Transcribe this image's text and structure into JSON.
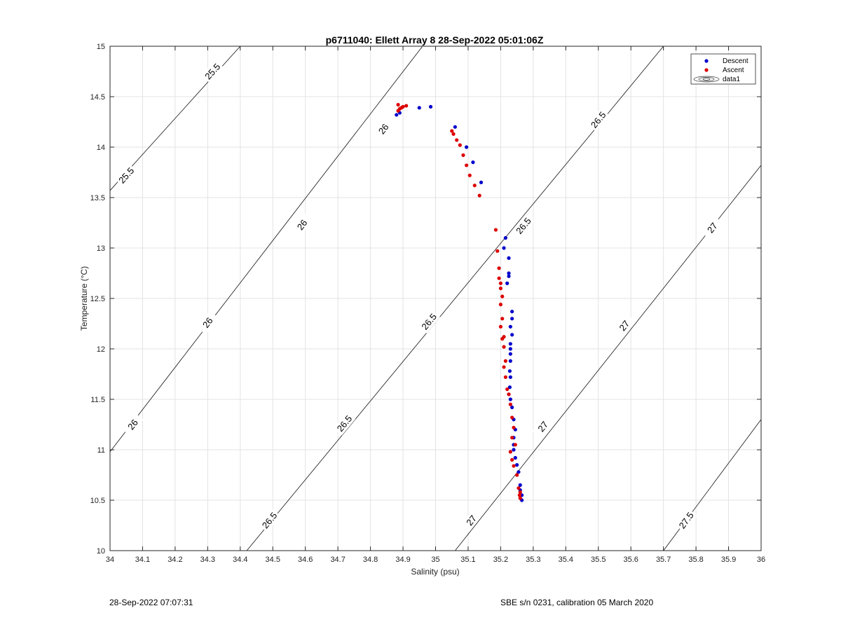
{
  "chart_data": {
    "type": "scatter",
    "title": "p6711040: Ellett Array 8 28-Sep-2022 05:01:06Z",
    "xlabel": "Salinity (psu)",
    "ylabel": "Temperature (°C)",
    "xlim": [
      34,
      36
    ],
    "ylim": [
      10,
      15
    ],
    "xticks": [
      "34",
      "34.1",
      "34.2",
      "34.3",
      "34.4",
      "34.5",
      "34.6",
      "34.7",
      "34.8",
      "34.9",
      "35",
      "35.1",
      "35.2",
      "35.3",
      "35.4",
      "35.5",
      "35.6",
      "35.7",
      "35.8",
      "35.9",
      "36"
    ],
    "yticks": [
      "10",
      "10.5",
      "11",
      "11.5",
      "12",
      "12.5",
      "13",
      "13.5",
      "14",
      "14.5",
      "15"
    ],
    "grid": true,
    "legend_position": "top-right",
    "legend": [
      "Descent",
      "Ascent",
      "data1"
    ],
    "series": [
      {
        "name": "Descent",
        "color": "#0000cc",
        "x": [
          34.88,
          34.89,
          34.95,
          34.985,
          35.06,
          35.095,
          35.115,
          35.14,
          35.21,
          35.215,
          35.22,
          35.225,
          35.225,
          35.225,
          35.235,
          35.235,
          35.23,
          35.235,
          35.23,
          35.23,
          35.23,
          35.23,
          35.228,
          35.23,
          35.228,
          35.225,
          35.23,
          35.235,
          35.24,
          35.245,
          35.24,
          35.24,
          35.24,
          35.245,
          35.25,
          35.255,
          35.26,
          35.26,
          35.265,
          35.265
        ],
        "y": [
          14.32,
          14.34,
          14.39,
          14.4,
          14.2,
          14.0,
          13.85,
          13.65,
          13.0,
          13.1,
          12.65,
          12.72,
          12.75,
          12.9,
          12.37,
          12.3,
          12.22,
          12.14,
          12.05,
          12.0,
          11.95,
          11.88,
          11.78,
          11.72,
          11.62,
          11.55,
          11.5,
          11.42,
          11.3,
          11.2,
          11.12,
          11.05,
          11.0,
          10.92,
          10.85,
          10.78,
          10.65,
          10.6,
          10.55,
          10.5
        ]
      },
      {
        "name": "Ascent",
        "color": "#dd0000",
        "x": [
          34.885,
          34.885,
          34.89,
          34.895,
          34.9,
          34.91,
          35.05,
          35.055,
          35.065,
          35.075,
          35.085,
          35.095,
          35.105,
          35.12,
          35.135,
          35.185,
          35.19,
          35.195,
          35.195,
          35.2,
          35.205,
          35.2,
          35.2,
          35.205,
          35.2,
          35.205,
          35.21,
          35.21,
          35.215,
          35.21,
          35.215,
          35.22,
          35.225,
          35.23,
          35.235,
          35.24,
          35.235,
          35.245,
          35.23,
          35.235,
          35.24,
          35.25,
          35.255,
          35.26,
          35.26,
          35.258
        ],
        "y": [
          14.42,
          14.36,
          14.38,
          14.39,
          14.4,
          14.41,
          14.16,
          14.13,
          14.07,
          14.02,
          13.92,
          13.82,
          13.72,
          13.62,
          13.52,
          13.18,
          12.97,
          12.8,
          12.7,
          12.65,
          12.52,
          12.6,
          12.44,
          12.3,
          12.22,
          12.1,
          12.12,
          12.02,
          11.88,
          11.82,
          11.72,
          11.6,
          11.55,
          11.45,
          11.32,
          11.22,
          11.12,
          11.05,
          10.98,
          10.9,
          10.84,
          10.75,
          10.62,
          10.58,
          10.52,
          10.55
        ]
      }
    ],
    "contours": [
      {
        "label": "25.5",
        "line": [
          [
            34.0,
            13.57
          ],
          [
            34.4,
            15.0
          ]
        ],
        "labels_at": [
          [
            34.05,
            13.72
          ],
          [
            34.315,
            14.75
          ]
        ]
      },
      {
        "label": "26",
        "line": [
          [
            34.0,
            10.98
          ],
          [
            34.96,
            15.0
          ]
        ],
        "labels_at": [
          [
            34.07,
            11.25
          ],
          [
            34.3,
            12.26
          ],
          [
            34.59,
            13.23
          ],
          [
            34.84,
            14.18
          ]
        ]
      },
      {
        "label": "26.5",
        "line": [
          [
            34.42,
            10.0
          ],
          [
            35.7,
            15.0
          ]
        ],
        "labels_at": [
          [
            34.49,
            10.3
          ],
          [
            34.72,
            11.26
          ],
          [
            34.98,
            12.27
          ],
          [
            35.27,
            13.22
          ],
          [
            35.5,
            14.27
          ]
        ]
      },
      {
        "label": "27",
        "line": [
          [
            35.06,
            10.0
          ],
          [
            36.0,
            13.82
          ]
        ],
        "labels_at": [
          [
            35.11,
            10.3
          ],
          [
            35.33,
            11.23
          ],
          [
            35.58,
            12.23
          ],
          [
            35.85,
            13.2
          ]
        ]
      },
      {
        "label": "27.5",
        "line": [
          [
            35.7,
            10.0
          ],
          [
            36.0,
            11.3
          ]
        ],
        "labels_at": [
          [
            35.77,
            10.3
          ]
        ]
      }
    ]
  },
  "footer": {
    "timestamp": "28-Sep-2022 07:07:31",
    "calibration": "SBE s/n 0231, calibration 05 March 2020"
  }
}
